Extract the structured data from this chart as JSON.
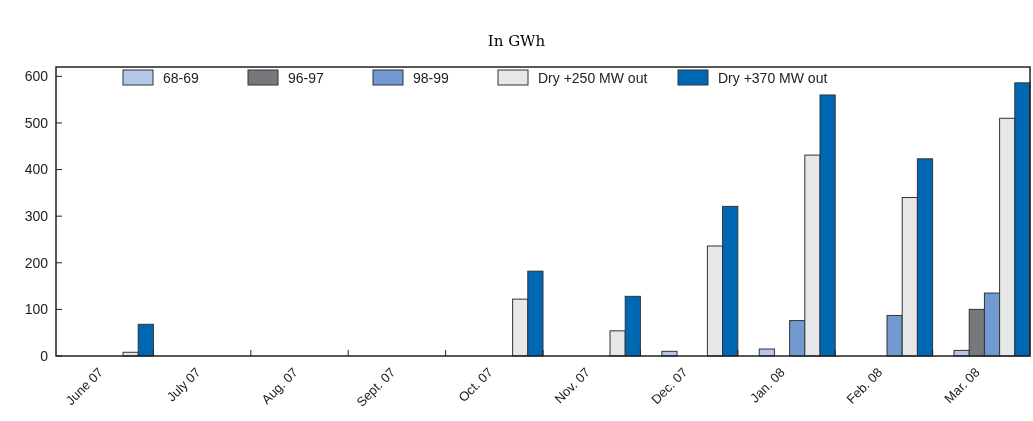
{
  "chart_data": {
    "type": "bar",
    "subtitle": "In GWh",
    "categories": [
      "June 07",
      "July 07",
      "Aug. 07",
      "Sept. 07",
      "Oct. 07",
      "Nov. 07",
      "Dec. 07",
      "Jan. 08",
      "Feb. 08",
      "Mar. 08"
    ],
    "series": [
      {
        "name": "68-69",
        "color": "#b3c7e6",
        "values": [
          0,
          0,
          0,
          0,
          0,
          0,
          10,
          15,
          0,
          12
        ]
      },
      {
        "name": "96-97",
        "color": "#77787b",
        "values": [
          0,
          0,
          0,
          0,
          0,
          0,
          0,
          0,
          0,
          100
        ]
      },
      {
        "name": "98-99",
        "color": "#7299d0",
        "values": [
          0,
          0,
          0,
          0,
          0,
          0,
          0,
          76,
          87,
          135
        ]
      },
      {
        "name": "Dry +250 MW out",
        "color": "#e6e7e8",
        "values": [
          8,
          0,
          0,
          0,
          122,
          54,
          236,
          431,
          340,
          510
        ]
      },
      {
        "name": "Dry +370 MW out",
        "color": "#0068b3",
        "values": [
          68,
          0,
          0,
          0,
          182,
          128,
          321,
          560,
          423,
          586
        ]
      }
    ],
    "ylim": [
      0,
      620
    ],
    "yticks": [
      0,
      100,
      200,
      300,
      400,
      500,
      600
    ],
    "grid": false,
    "legend": "top"
  }
}
